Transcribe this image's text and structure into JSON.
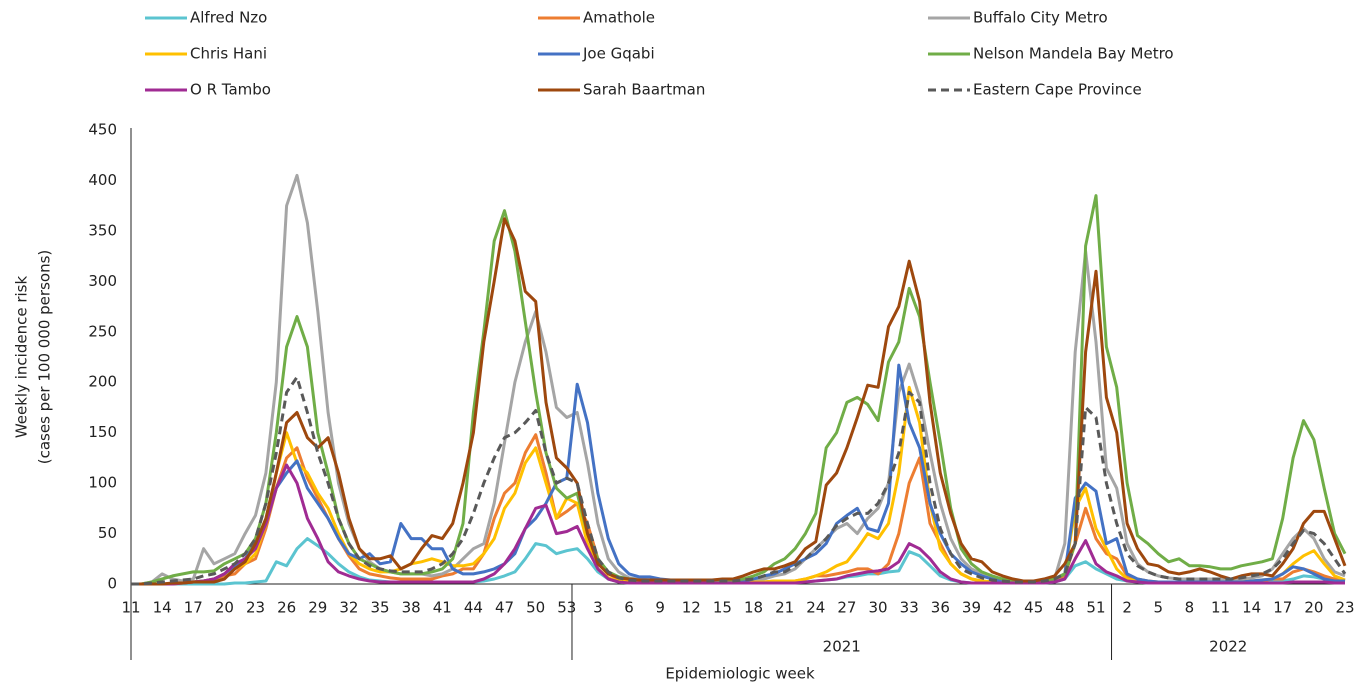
{
  "chart_data": {
    "type": "line",
    "y_label": [
      "Weekly incidence risk",
      "(cases per 100 000 persons)"
    ],
    "x_label": "Epidemiologic week",
    "ylim": [
      0,
      450
    ],
    "yticks": [
      0,
      50,
      100,
      150,
      200,
      250,
      300,
      350,
      400,
      450
    ],
    "categories": [
      11,
      null,
      null,
      14,
      null,
      null,
      17,
      null,
      null,
      20,
      null,
      null,
      23,
      null,
      null,
      26,
      null,
      null,
      29,
      null,
      null,
      32,
      null,
      null,
      35,
      null,
      null,
      38,
      null,
      null,
      41,
      null,
      null,
      44,
      null,
      null,
      47,
      null,
      null,
      50,
      null,
      null,
      53,
      null,
      null,
      3,
      null,
      null,
      6,
      null,
      null,
      9,
      null,
      null,
      12,
      null,
      null,
      15,
      null,
      null,
      18,
      null,
      null,
      21,
      null,
      null,
      24,
      null,
      null,
      27,
      null,
      null,
      30,
      null,
      null,
      33,
      null,
      null,
      36,
      null,
      null,
      39,
      null,
      null,
      42,
      null,
      null,
      45,
      null,
      null,
      48,
      null,
      null,
      51,
      null,
      null,
      2,
      null,
      null,
      5,
      null,
      null,
      8,
      null,
      null,
      11,
      null,
      null,
      14,
      null,
      null,
      17,
      null,
      null,
      20,
      null,
      null,
      23
    ],
    "groups": [
      {
        "label": null,
        "count": 43
      },
      {
        "label": "2021",
        "count": 52
      },
      {
        "label": "2022",
        "count": 23
      }
    ],
    "series": [
      {
        "name": "Alfred Nzo",
        "color": "#5bc4d0",
        "values": [
          0,
          0,
          0,
          0,
          0,
          0,
          0,
          0,
          0,
          0,
          1,
          1,
          2,
          3,
          22,
          18,
          35,
          45,
          38,
          30,
          20,
          12,
          7,
          4,
          3,
          2,
          2,
          2,
          2,
          2,
          2,
          2,
          2,
          2,
          3,
          5,
          8,
          12,
          25,
          40,
          38,
          30,
          33,
          35,
          25,
          12,
          5,
          2,
          1,
          1,
          1,
          1,
          1,
          1,
          1,
          1,
          1,
          1,
          1,
          1,
          1,
          1,
          1,
          1,
          2,
          2,
          3,
          4,
          5,
          7,
          8,
          10,
          10,
          12,
          13,
          32,
          28,
          18,
          8,
          4,
          2,
          1,
          1,
          1,
          1,
          1,
          1,
          1,
          1,
          2,
          5,
          18,
          22,
          15,
          10,
          5,
          3,
          2,
          1,
          1,
          1,
          1,
          1,
          1,
          1,
          1,
          1,
          1,
          1,
          2,
          2,
          3,
          5,
          8,
          7,
          5,
          3,
          2
        ]
      },
      {
        "name": "Amathole",
        "color": "#ed7d31",
        "values": [
          0,
          0,
          0,
          0,
          0,
          1,
          2,
          3,
          5,
          8,
          10,
          20,
          25,
          55,
          95,
          125,
          135,
          105,
          85,
          65,
          45,
          28,
          15,
          10,
          8,
          6,
          5,
          5,
          5,
          5,
          8,
          10,
          15,
          15,
          30,
          65,
          90,
          100,
          130,
          148,
          110,
          65,
          72,
          80,
          60,
          25,
          10,
          5,
          3,
          2,
          2,
          2,
          2,
          2,
          2,
          2,
          2,
          2,
          2,
          2,
          2,
          2,
          3,
          3,
          3,
          5,
          8,
          8,
          10,
          12,
          15,
          15,
          10,
          20,
          50,
          100,
          125,
          60,
          40,
          20,
          10,
          5,
          3,
          2,
          2,
          2,
          2,
          2,
          3,
          5,
          8,
          40,
          75,
          45,
          30,
          25,
          8,
          5,
          3,
          2,
          2,
          2,
          2,
          2,
          2,
          2,
          2,
          2,
          2,
          3,
          5,
          5,
          12,
          15,
          12,
          8,
          5,
          3
        ]
      },
      {
        "name": "Buffalo City Metro",
        "color": "#a5a5a5",
        "values": [
          0,
          0,
          2,
          10,
          5,
          3,
          5,
          35,
          20,
          25,
          30,
          50,
          68,
          110,
          200,
          375,
          405,
          358,
          270,
          170,
          100,
          60,
          35,
          22,
          15,
          12,
          10,
          10,
          10,
          8,
          10,
          15,
          25,
          35,
          40,
          80,
          140,
          200,
          240,
          270,
          230,
          175,
          165,
          170,
          120,
          60,
          25,
          12,
          6,
          5,
          4,
          4,
          4,
          3,
          3,
          3,
          3,
          3,
          3,
          4,
          4,
          5,
          8,
          10,
          15,
          25,
          35,
          45,
          55,
          60,
          50,
          65,
          75,
          100,
          190,
          218,
          185,
          130,
          80,
          45,
          25,
          15,
          10,
          7,
          5,
          3,
          2,
          2,
          3,
          5,
          40,
          230,
          330,
          240,
          115,
          95,
          40,
          20,
          12,
          8,
          6,
          5,
          5,
          5,
          5,
          5,
          5,
          5,
          6,
          8,
          15,
          30,
          45,
          55,
          45,
          25,
          12,
          8
        ]
      },
      {
        "name": "Chris Hani",
        "color": "#ffc000",
        "values": [
          0,
          0,
          0,
          0,
          0,
          1,
          2,
          3,
          5,
          10,
          15,
          20,
          30,
          60,
          110,
          150,
          120,
          110,
          90,
          75,
          50,
          30,
          20,
          15,
          12,
          12,
          15,
          20,
          22,
          25,
          22,
          18,
          18,
          20,
          30,
          45,
          75,
          90,
          120,
          135,
          100,
          65,
          85,
          80,
          40,
          15,
          6,
          3,
          2,
          2,
          2,
          2,
          2,
          2,
          2,
          2,
          2,
          2,
          2,
          2,
          2,
          2,
          3,
          3,
          3,
          5,
          8,
          12,
          18,
          22,
          35,
          50,
          45,
          60,
          110,
          195,
          160,
          80,
          35,
          20,
          10,
          5,
          3,
          2,
          2,
          2,
          2,
          2,
          3,
          5,
          10,
          75,
          95,
          55,
          35,
          15,
          5,
          3,
          2,
          2,
          2,
          2,
          2,
          2,
          2,
          2,
          2,
          2,
          3,
          4,
          5,
          10,
          20,
          28,
          33,
          20,
          8,
          4
        ]
      },
      {
        "name": "Joe Gqabi",
        "color": "#4472c4",
        "values": [
          0,
          0,
          0,
          0,
          0,
          1,
          2,
          3,
          5,
          10,
          18,
          25,
          40,
          60,
          95,
          110,
          122,
          95,
          80,
          65,
          45,
          30,
          25,
          30,
          20,
          22,
          60,
          45,
          45,
          35,
          35,
          15,
          10,
          10,
          12,
          15,
          20,
          30,
          55,
          65,
          80,
          100,
          105,
          198,
          160,
          90,
          45,
          20,
          10,
          7,
          7,
          5,
          4,
          3,
          3,
          3,
          3,
          3,
          3,
          3,
          5,
          8,
          10,
          15,
          20,
          25,
          30,
          40,
          60,
          68,
          75,
          55,
          52,
          80,
          217,
          160,
          135,
          80,
          50,
          30,
          20,
          12,
          8,
          5,
          3,
          2,
          2,
          2,
          3,
          5,
          10,
          85,
          100,
          92,
          40,
          45,
          10,
          5,
          3,
          2,
          2,
          2,
          2,
          2,
          2,
          2,
          2,
          2,
          3,
          4,
          5,
          10,
          17,
          15,
          10,
          5,
          3,
          3
        ]
      },
      {
        "name": "Nelson Mandela Bay Metro",
        "color": "#70ad47",
        "values": [
          0,
          0,
          2,
          5,
          8,
          10,
          12,
          12,
          13,
          20,
          25,
          30,
          45,
          80,
          150,
          235,
          265,
          235,
          150,
          110,
          65,
          40,
          25,
          20,
          15,
          12,
          10,
          10,
          10,
          12,
          15,
          25,
          60,
          170,
          250,
          340,
          370,
          330,
          260,
          190,
          130,
          95,
          85,
          90,
          50,
          25,
          12,
          7,
          5,
          4,
          4,
          4,
          4,
          4,
          4,
          4,
          4,
          4,
          4,
          5,
          8,
          12,
          20,
          25,
          35,
          50,
          70,
          135,
          150,
          180,
          185,
          178,
          162,
          220,
          240,
          293,
          265,
          200,
          140,
          75,
          35,
          20,
          12,
          8,
          5,
          3,
          2,
          2,
          3,
          5,
          10,
          40,
          335,
          385,
          235,
          195,
          100,
          48,
          40,
          30,
          22,
          25,
          18,
          18,
          17,
          15,
          15,
          18,
          20,
          22,
          25,
          65,
          125,
          162,
          143,
          95,
          50,
          30
        ]
      },
      {
        "name": "O R Tambo",
        "color": "#a02b93",
        "values": [
          0,
          0,
          0,
          0,
          0,
          1,
          2,
          3,
          5,
          10,
          20,
          25,
          35,
          60,
          95,
          118,
          100,
          65,
          45,
          22,
          12,
          8,
          5,
          3,
          2,
          2,
          2,
          2,
          2,
          2,
          2,
          2,
          2,
          2,
          5,
          10,
          20,
          35,
          55,
          75,
          78,
          50,
          52,
          57,
          35,
          15,
          5,
          2,
          1,
          1,
          1,
          1,
          1,
          1,
          1,
          1,
          1,
          1,
          1,
          1,
          1,
          1,
          1,
          1,
          1,
          2,
          3,
          4,
          5,
          8,
          10,
          12,
          13,
          15,
          22,
          40,
          35,
          25,
          12,
          5,
          2,
          1,
          1,
          1,
          1,
          1,
          1,
          1,
          1,
          2,
          5,
          25,
          43,
          20,
          12,
          8,
          3,
          2,
          1,
          1,
          1,
          1,
          1,
          1,
          1,
          1,
          1,
          1,
          1,
          1,
          1,
          1,
          2,
          2,
          2,
          2,
          1,
          1
        ]
      },
      {
        "name": "Sarah Baartman",
        "color": "#9e480e",
        "values": [
          0,
          0,
          0,
          0,
          1,
          1,
          2,
          2,
          2,
          5,
          15,
          22,
          40,
          65,
          110,
          160,
          170,
          145,
          135,
          145,
          110,
          65,
          35,
          25,
          25,
          28,
          15,
          20,
          35,
          48,
          45,
          60,
          100,
          150,
          240,
          300,
          362,
          340,
          290,
          280,
          180,
          125,
          115,
          100,
          50,
          20,
          10,
          6,
          5,
          4,
          4,
          4,
          4,
          4,
          4,
          4,
          4,
          5,
          5,
          8,
          12,
          15,
          15,
          18,
          22,
          35,
          42,
          98,
          110,
          135,
          165,
          197,
          195,
          255,
          275,
          320,
          280,
          180,
          110,
          70,
          40,
          25,
          22,
          12,
          8,
          5,
          3,
          3,
          5,
          8,
          20,
          40,
          230,
          310,
          185,
          150,
          60,
          35,
          20,
          18,
          12,
          10,
          12,
          15,
          12,
          8,
          5,
          8,
          10,
          10,
          8,
          20,
          35,
          60,
          72,
          72,
          45,
          18
        ]
      },
      {
        "name": "Eastern Cape Province",
        "color": "#595959",
        "dashed": true,
        "values": [
          0,
          0,
          1,
          2,
          3,
          4,
          5,
          8,
          10,
          15,
          20,
          30,
          45,
          80,
          130,
          190,
          205,
          170,
          130,
          100,
          65,
          40,
          25,
          18,
          15,
          13,
          12,
          12,
          12,
          15,
          20,
          30,
          45,
          70,
          100,
          125,
          145,
          150,
          160,
          172,
          130,
          100,
          105,
          100,
          60,
          25,
          12,
          6,
          4,
          3,
          3,
          3,
          3,
          3,
          3,
          3,
          3,
          3,
          3,
          4,
          5,
          8,
          12,
          12,
          18,
          25,
          35,
          45,
          58,
          65,
          70,
          70,
          80,
          100,
          130,
          190,
          180,
          100,
          55,
          30,
          15,
          10,
          6,
          4,
          3,
          2,
          2,
          2,
          3,
          5,
          10,
          40,
          175,
          165,
          100,
          60,
          30,
          18,
          12,
          8,
          6,
          5,
          5,
          5,
          5,
          5,
          5,
          6,
          8,
          10,
          15,
          25,
          40,
          53,
          50,
          40,
          25,
          10
        ]
      }
    ]
  }
}
